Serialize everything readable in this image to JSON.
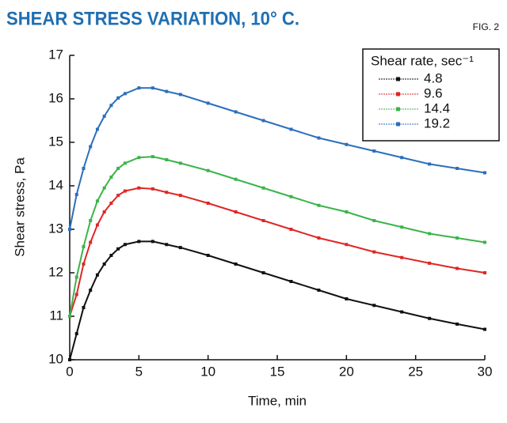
{
  "chart_data": {
    "type": "line",
    "title": "SHEAR STRESS VARIATION, 10° C.",
    "figure_label": "FIG. 2",
    "x_label": "Time, min",
    "y_label": "Shear stress, Pa",
    "legend_title": "Shear rate, sec⁻¹",
    "legend_position": "upper right",
    "x": [
      0,
      0.5,
      1,
      1.5,
      2,
      2.5,
      3,
      3.5,
      4,
      5,
      6,
      7,
      8,
      10,
      12,
      14,
      16,
      18,
      20,
      22,
      24,
      26,
      28,
      30
    ],
    "series": [
      {
        "name": "4.8",
        "color": "#111111",
        "values": [
          10.0,
          10.6,
          11.2,
          11.6,
          11.95,
          12.2,
          12.4,
          12.55,
          12.65,
          12.72,
          12.72,
          12.65,
          12.58,
          12.4,
          12.2,
          12.0,
          11.8,
          11.6,
          11.4,
          11.25,
          11.1,
          10.95,
          10.82,
          10.7
        ]
      },
      {
        "name": "9.6",
        "color": "#e02626",
        "values": [
          11.0,
          11.5,
          12.2,
          12.7,
          13.1,
          13.4,
          13.6,
          13.78,
          13.88,
          13.95,
          13.93,
          13.85,
          13.78,
          13.6,
          13.4,
          13.2,
          13.0,
          12.8,
          12.65,
          12.48,
          12.35,
          12.22,
          12.1,
          12.0
        ]
      },
      {
        "name": "14.4",
        "color": "#3cb44b",
        "values": [
          11.0,
          11.9,
          12.6,
          13.2,
          13.65,
          13.95,
          14.2,
          14.4,
          14.52,
          14.65,
          14.67,
          14.6,
          14.52,
          14.35,
          14.15,
          13.95,
          13.75,
          13.55,
          13.4,
          13.2,
          13.05,
          12.9,
          12.8,
          12.7
        ]
      },
      {
        "name": "19.2",
        "color": "#2b6fbb",
        "values": [
          13.0,
          13.8,
          14.4,
          14.9,
          15.3,
          15.6,
          15.85,
          16.02,
          16.12,
          16.25,
          16.25,
          16.17,
          16.1,
          15.9,
          15.7,
          15.5,
          15.3,
          15.1,
          14.95,
          14.8,
          14.65,
          14.5,
          14.4,
          14.3
        ]
      }
    ],
    "xlim": [
      0,
      30
    ],
    "xticks": [
      0,
      5,
      10,
      15,
      20,
      25,
      30
    ],
    "ylim": [
      10,
      17
    ],
    "yticks": [
      10,
      11,
      12,
      13,
      14,
      15,
      16,
      17
    ],
    "title_color": "#1f6fb2"
  }
}
